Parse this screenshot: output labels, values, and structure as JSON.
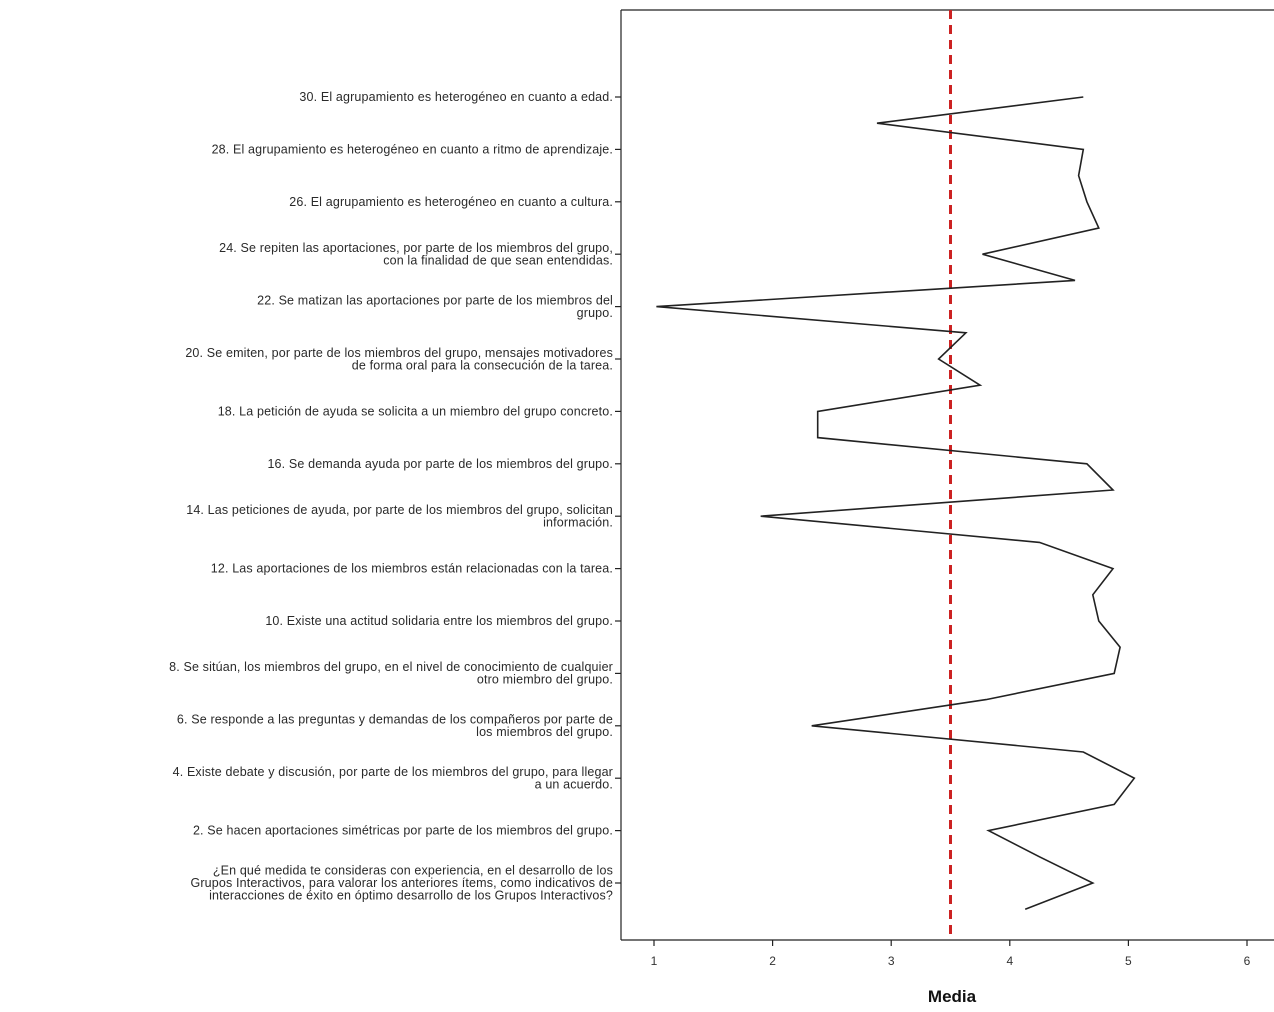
{
  "chart_data": {
    "type": "line",
    "title": "",
    "xlabel": "Media",
    "ylabel": "",
    "xlim": [
      1,
      6
    ],
    "xticks": [
      "1",
      "2",
      "3",
      "4",
      "5",
      "6"
    ],
    "grid": false,
    "reference_line": {
      "x": 3.5,
      "style": "dashed",
      "color": "#cc2222"
    },
    "line_color": "#222222",
    "categories": [
      "30. El agrupamiento es heterogéneo en cuanto a edad.",
      "28. El agrupamiento es heterogéneo en cuanto a ritmo de aprendizaje.",
      "26. El agrupamiento es heterogéneo en cuanto a cultura.",
      "24. Se repiten las aportaciones, por parte de los miembros del grupo, con la finalidad de que sean entendidas.",
      "22. Se matizan las aportaciones por parte de los miembros del grupo.",
      "20. Se emiten, por parte de los miembros del grupo, mensajes motivadores de forma oral para la consecución de la tarea.",
      "18. La petición de ayuda se solicita a un miembro del grupo concreto.",
      "16. Se demanda ayuda por parte de los miembros del grupo.",
      "14. Las peticiones de ayuda, por parte de los miembros del grupo, solicitan información.",
      "12. Las aportaciones de los miembros están relacionadas con la tarea.",
      "10. Existe una actitud solidaria entre los miembros del grupo.",
      "8. Se sitúan, los miembros del grupo, en el nivel de conocimiento de cualquier otro miembro del grupo.",
      "6. Se responde a las preguntas y demandas de los compañeros por parte de los miembros del grupo.",
      "4. Existe debate y discusión, por parte de los miembros del grupo, para llegar a un acuerdo.",
      "2. Se hacen aportaciones simétricas por parte de los miembros del grupo.",
      "¿En qué medida te consideras con experiencia, en el desarrollo de los Grupos Interactivos, para valorar los anteriores ítems, como indicativos de interacciones de éxito en óptimo desarrollo de los Grupos Interactivos?"
    ],
    "category_lines": [
      [
        "30. El agrupamiento es heterogéneo en cuanto a edad."
      ],
      [
        "28. El agrupamiento es heterogéneo en cuanto a ritmo de aprendizaje."
      ],
      [
        "26. El agrupamiento es heterogéneo en cuanto a cultura."
      ],
      [
        "24. Se repiten las aportaciones, por parte de los miembros del grupo,",
        "con la finalidad de que sean entendidas."
      ],
      [
        "22. Se matizan las aportaciones por parte de los miembros del",
        "grupo."
      ],
      [
        "20. Se emiten, por parte de los miembros del grupo, mensajes motivadores",
        "de forma oral para la consecución de la tarea."
      ],
      [
        "18. La petición de ayuda se solicita a un miembro del grupo concreto."
      ],
      [
        "16. Se demanda ayuda por parte de los miembros del grupo."
      ],
      [
        "14. Las peticiones de ayuda, por parte de los miembros del grupo, solicitan",
        "información."
      ],
      [
        "12. Las aportaciones de los miembros están relacionadas con la tarea."
      ],
      [
        "10. Existe una actitud solidaria entre los miembros del grupo."
      ],
      [
        "8. Se sitúan, los miembros del grupo, en el nivel de conocimiento de cualquier",
        "otro miembro del grupo."
      ],
      [
        "6. Se responde a las preguntas y demandas de los compañeros por parte de",
        "los miembros del grupo."
      ],
      [
        "4. Existe debate y discusión, por parte de los miembros del grupo, para llegar",
        "a un acuerdo."
      ],
      [
        "2. Se hacen aportaciones simétricas por parte de los miembros del grupo."
      ],
      [
        "¿En qué medida te consideras con experiencia, en el desarrollo de los",
        "Grupos Interactivos, para valorar los anteriores ítems, como indicativos de",
        "interacciones de éxito en óptimo desarrollo de los Grupos Interactivos?"
      ]
    ],
    "series": [
      {
        "points": [
          [
            4.62,
            0
          ],
          [
            2.88,
            0.5
          ],
          [
            4.62,
            1
          ],
          [
            4.58,
            1.5
          ],
          [
            4.65,
            2
          ],
          [
            4.75,
            2.5
          ],
          [
            3.77,
            3
          ],
          [
            4.55,
            3.5
          ],
          [
            1.02,
            4
          ],
          [
            3.63,
            4.5
          ],
          [
            3.4,
            5
          ],
          [
            3.75,
            5.5
          ],
          [
            2.38,
            6
          ],
          [
            2.38,
            6.5
          ],
          [
            4.65,
            7
          ],
          [
            4.87,
            7.5
          ],
          [
            1.9,
            8
          ],
          [
            4.25,
            8.5
          ],
          [
            4.87,
            9
          ],
          [
            4.7,
            9.5
          ],
          [
            4.75,
            10
          ],
          [
            4.93,
            10.5
          ],
          [
            4.88,
            11
          ],
          [
            3.8,
            11.5
          ],
          [
            2.33,
            12
          ],
          [
            4.62,
            12.5
          ],
          [
            5.05,
            13
          ],
          [
            4.88,
            13.5
          ],
          [
            3.82,
            14
          ],
          [
            4.25,
            14.5
          ],
          [
            4.7,
            15
          ],
          [
            4.13,
            15.5
          ]
        ]
      }
    ]
  }
}
